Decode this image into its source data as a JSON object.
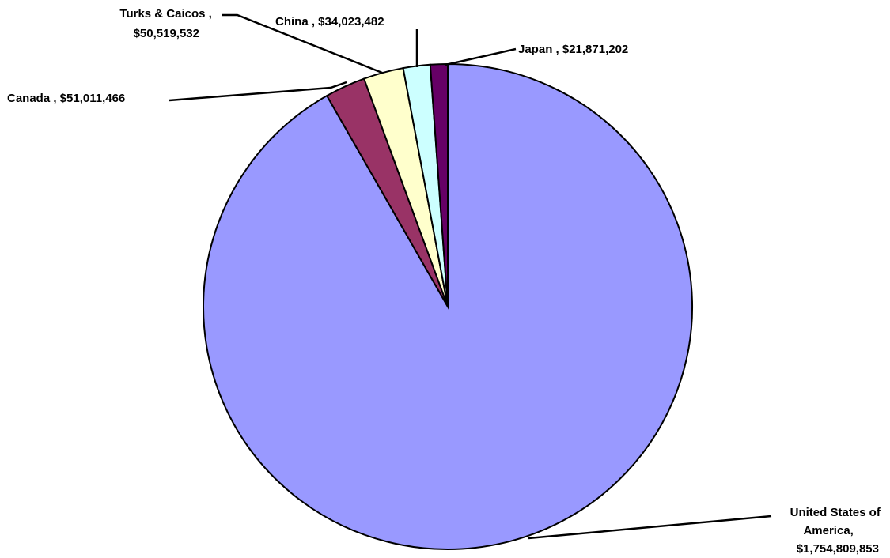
{
  "chart_data": {
    "type": "pie",
    "title": "",
    "start_angle_deg": 0,
    "direction": "clockwise",
    "slices": [
      {
        "name": "United States of America",
        "label_lines": [
          "United States of",
          "America,",
          "$1,754,809,853"
        ],
        "value": 1754809853,
        "color": "#9999FF"
      },
      {
        "name": "Canada",
        "label_lines": [
          "Canada , $51,011,466"
        ],
        "value": 51011466,
        "color": "#993366"
      },
      {
        "name": "Turks & Caicos",
        "label_lines": [
          "Turks & Caicos ,",
          "$50,519,532"
        ],
        "value": 50519532,
        "color": "#FFFFCC"
      },
      {
        "name": "China",
        "label_lines": [
          "China , $34,023,482"
        ],
        "value": 34023482,
        "color": "#CCFFFF"
      },
      {
        "name": "Japan",
        "label_lines": [
          "Japan , $21,871,202"
        ],
        "value": 21871202,
        "color": "#660066"
      }
    ]
  }
}
